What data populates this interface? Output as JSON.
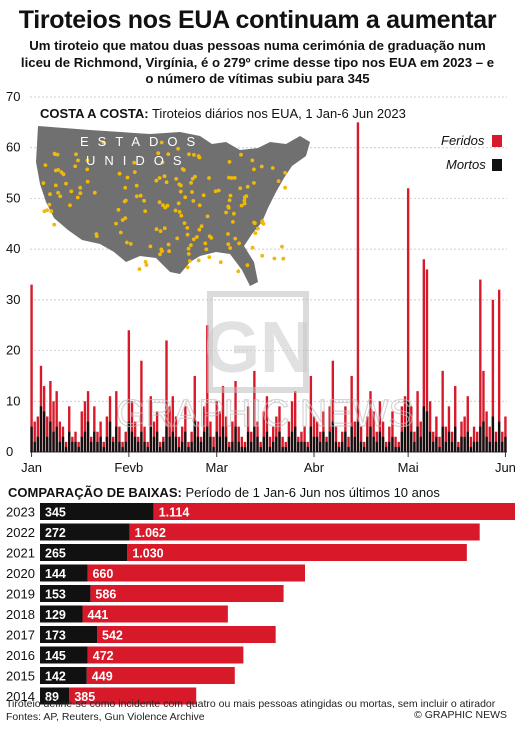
{
  "title": "Tiroteios nos EUA continuam a aumentar",
  "subtitle": "Um tiroteio que matou duas pessoas numa cerimónia de graduação num liceu de Richmond, Virgínia, é o 279º crime desse tipo nos EUA em 2023 – e o número de vítimas subiu para 345",
  "map_label_1": "ESTADOS",
  "map_label_2": "UNIDOS",
  "watermark": "GRAPHIC NEWS",
  "watermark_logo": "GN",
  "colors": {
    "injured": "#d7192a",
    "killed": "#111111",
    "map_fill": "#707070",
    "dots": "#f2b807"
  },
  "chart_data": [
    {
      "type": "bar",
      "title_bold": "COSTA A COSTA:",
      "title": "Tiroteios diários nos EUA, 1 Jan-6 Jun 2023",
      "x_tick_labels": [
        "Jan",
        "Fevb",
        "Mar",
        "Abr",
        "Mai",
        "Jun"
      ],
      "x_tick_days": [
        0,
        31,
        59,
        90,
        120,
        151
      ],
      "ylim": [
        0,
        70
      ],
      "y_ticks": [
        0,
        10,
        20,
        30,
        40,
        50,
        60,
        70
      ],
      "stacked": true,
      "series": [
        {
          "name": "Feridos",
          "values": [
            33,
            6,
            7,
            17,
            13,
            7,
            14,
            10,
            12,
            6,
            5,
            2,
            9,
            3,
            4,
            2,
            8,
            10,
            12,
            3,
            9,
            4,
            6,
            2,
            7,
            11,
            3,
            12,
            5,
            2,
            4,
            24,
            10,
            6,
            3,
            18,
            5,
            2,
            11,
            6,
            8,
            2,
            3,
            22,
            9,
            11,
            7,
            3,
            5,
            9,
            2,
            4,
            15,
            6,
            3,
            9,
            25,
            6,
            3,
            10,
            8,
            13,
            7,
            2,
            6,
            14,
            5,
            3,
            2,
            9,
            4,
            16,
            6,
            2,
            8,
            11,
            3,
            5,
            7,
            9,
            3,
            2,
            6,
            10,
            12,
            3,
            4,
            5,
            2,
            15,
            7,
            6,
            4,
            8,
            3,
            9,
            18,
            5,
            2,
            4,
            9,
            3,
            15,
            6,
            65,
            5,
            2,
            7,
            12,
            8,
            4,
            10,
            6,
            2,
            5,
            8,
            3,
            2,
            9,
            11,
            52,
            9,
            4,
            12,
            6,
            38,
            36,
            10,
            4,
            7,
            3,
            16,
            5,
            9,
            4,
            13,
            2,
            6,
            7,
            11,
            3,
            5,
            4,
            34,
            16,
            8,
            5,
            30,
            4,
            32,
            4,
            7
          ]
        },
        {
          "name": "Mortos",
          "values": [
            5,
            2,
            3,
            9,
            8,
            3,
            6,
            4,
            5,
            2,
            3,
            1,
            4,
            2,
            2,
            1,
            3,
            4,
            6,
            2,
            4,
            2,
            3,
            1,
            3,
            6,
            2,
            5,
            2,
            1,
            2,
            6,
            4,
            3,
            2,
            4,
            2,
            1,
            5,
            3,
            4,
            1,
            2,
            5,
            3,
            4,
            3,
            1,
            2,
            4,
            1,
            2,
            6,
            3,
            2,
            4,
            5,
            3,
            1,
            4,
            3,
            5,
            3,
            1,
            2,
            5,
            2,
            1,
            1,
            4,
            2,
            5,
            3,
            1,
            3,
            4,
            1,
            2,
            3,
            4,
            1,
            1,
            3,
            4,
            5,
            2,
            2,
            2,
            1,
            5,
            3,
            3,
            2,
            4,
            2,
            4,
            6,
            2,
            1,
            2,
            4,
            1,
            5,
            3,
            6,
            2,
            1,
            3,
            5,
            3,
            2,
            4,
            3,
            1,
            2,
            3,
            1,
            1,
            4,
            5,
            10,
            4,
            2,
            5,
            3,
            9,
            8,
            4,
            2,
            3,
            1,
            5,
            2,
            4,
            2,
            5,
            1,
            3,
            3,
            4,
            1,
            2,
            2,
            5,
            6,
            3,
            2,
            7,
            2,
            6,
            2,
            3
          ]
        }
      ]
    },
    {
      "type": "bar",
      "orientation": "horizontal",
      "stacked": true,
      "title_bold": "COMPARAÇÃO DE BAIXAS:",
      "title": "Período de 1 Jan-6 Jun nos últimos 10 anos",
      "categories": [
        "2023",
        "2022",
        "2021",
        "2020",
        "2019",
        "2018",
        "2017",
        "2016",
        "2015",
        "2014"
      ],
      "series": [
        {
          "name": "Mortos",
          "values": [
            345,
            272,
            265,
            144,
            153,
            129,
            173,
            145,
            142,
            89
          ],
          "labels": [
            "345",
            "272",
            "265",
            "144",
            "153",
            "129",
            "173",
            "145",
            "142",
            "89"
          ]
        },
        {
          "name": "Feridos",
          "values": [
            1114,
            1062,
            1030,
            660,
            586,
            441,
            542,
            472,
            449,
            385
          ],
          "labels": [
            "1.114",
            "1.062",
            "1.030",
            "660",
            "586",
            "441",
            "542",
            "472",
            "449",
            "385"
          ]
        }
      ]
    }
  ],
  "footnote": "Tiroteio define-se como incidente com quatro ou mais pessoas atingidas ou mortas, sem incluir o atirador",
  "sources": "Fontes: AP, Reuters, Gun Violence Archive",
  "credit": "© GRAPHIC NEWS"
}
